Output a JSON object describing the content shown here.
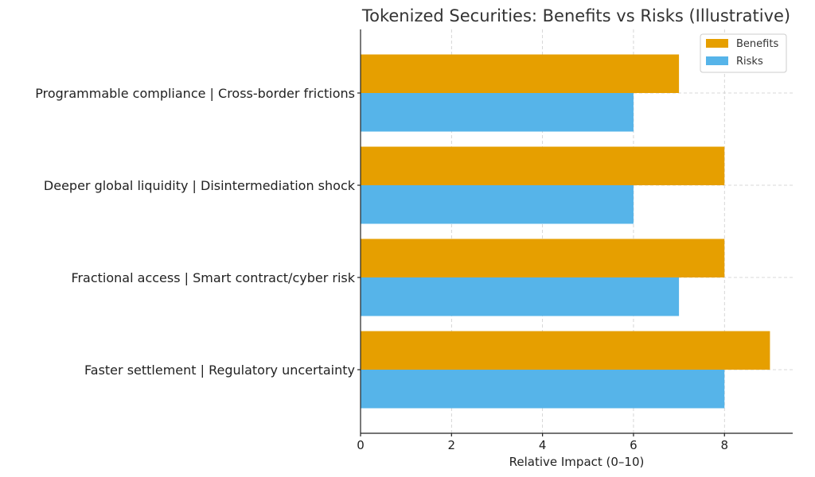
{
  "chart_data": {
    "type": "bar",
    "orientation": "horizontal",
    "title": "Tokenized Securities: Benefits vs Risks (Illustrative)",
    "xlabel": "Relative Impact (0–10)",
    "ylabel": "",
    "xlim": [
      0,
      9.5
    ],
    "xticks": [
      0,
      2,
      4,
      6,
      8
    ],
    "grid": true,
    "legend_position": "top-right",
    "categories": [
      "Faster settlement  |  Regulatory uncertainty",
      "Fractional access  |  Smart contract/cyber risk",
      "Deeper global liquidity  |  Disintermediation shock",
      "Programmable compliance  |  Cross-border frictions"
    ],
    "series": [
      {
        "name": "Benefits",
        "color": "#E69F00",
        "values": [
          9,
          8,
          8,
          7
        ]
      },
      {
        "name": "Risks",
        "color": "#56B4E9",
        "values": [
          8,
          7,
          6,
          6
        ]
      }
    ]
  }
}
